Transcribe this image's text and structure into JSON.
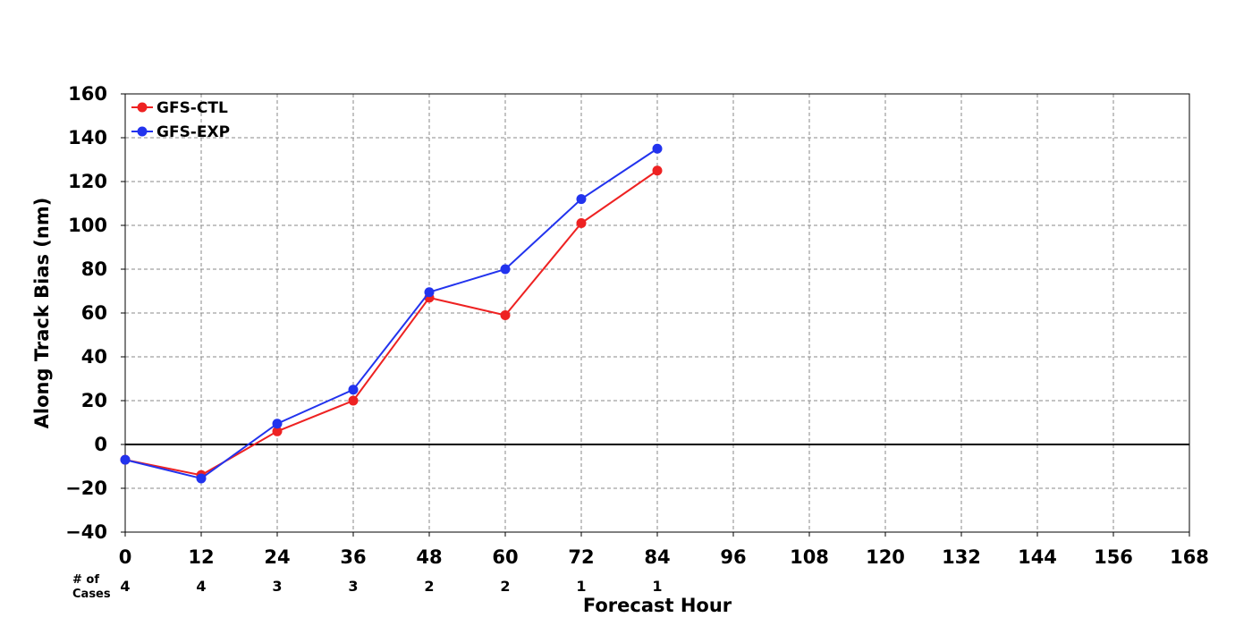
{
  "chart_data": {
    "type": "line",
    "title": "",
    "xlabel": "Forecast Hour",
    "ylabel": "Along Track Bias (nm)",
    "xlim": [
      0,
      168
    ],
    "ylim": [
      -40,
      160
    ],
    "x_ticks": [
      0,
      12,
      24,
      36,
      48,
      60,
      72,
      84,
      96,
      108,
      120,
      132,
      144,
      156,
      168
    ],
    "y_ticks": [
      -40,
      -20,
      0,
      20,
      40,
      60,
      80,
      100,
      120,
      140,
      160
    ],
    "grid": true,
    "legend_position": "top-left",
    "zero_line": true,
    "series": [
      {
        "name": "GFS-CTL",
        "color": "#ee2222",
        "x": [
          0,
          12,
          24,
          36,
          48,
          60,
          72,
          84
        ],
        "y": [
          -7,
          -14,
          6,
          20,
          67,
          59,
          101,
          125
        ]
      },
      {
        "name": "GFS-EXP",
        "color": "#2233ee",
        "x": [
          0,
          12,
          24,
          36,
          48,
          60,
          72,
          84
        ],
        "y": [
          -7,
          -15.5,
          9.5,
          25,
          69.5,
          80,
          112,
          135
        ]
      }
    ],
    "cases": {
      "label_line1": "# of",
      "label_line2": "Cases",
      "x": [
        0,
        12,
        24,
        36,
        48,
        60,
        72,
        84
      ],
      "counts": [
        "4",
        "4",
        "3",
        "3",
        "2",
        "2",
        "1",
        "1"
      ]
    }
  }
}
